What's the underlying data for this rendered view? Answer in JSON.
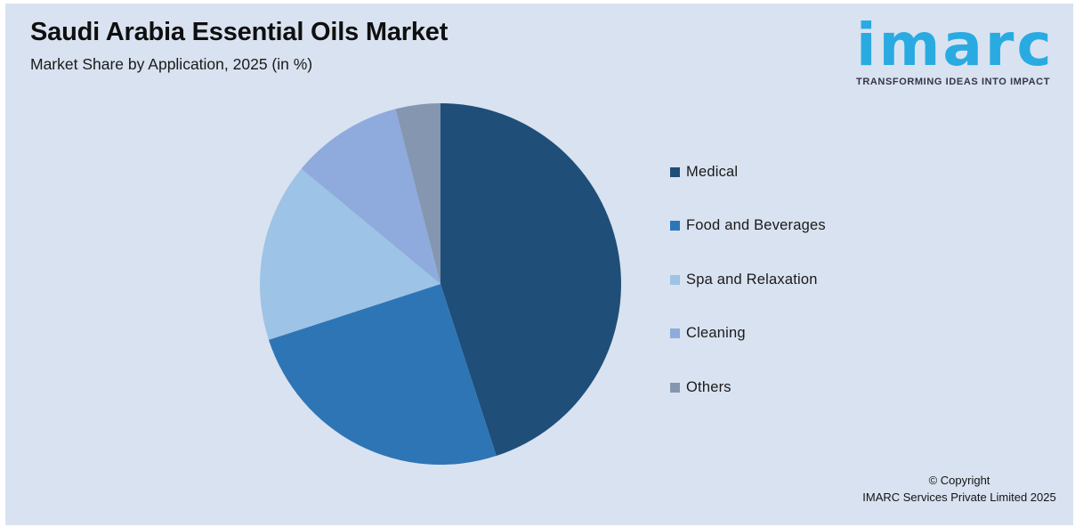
{
  "header": {
    "title": "Saudi Arabia Essential Oils Market",
    "subtitle": "Market Share by Application, 2025 (in %)"
  },
  "logo": {
    "text": "imarc",
    "tagline": "TRANSFORMING IDEAS INTO IMPACT",
    "brand_color": "#29ABE2"
  },
  "chart_data": {
    "type": "pie",
    "title": "Saudi Arabia Essential Oils Market",
    "subtitle": "Market Share by Application, 2025 (in %)",
    "categories": [
      "Medical",
      "Food and Beverages",
      "Spa and Relaxation",
      "Cleaning",
      "Others"
    ],
    "values": [
      45,
      25,
      16,
      10,
      4
    ],
    "unit": "%",
    "colors": [
      "#1F4E79",
      "#2E75B6",
      "#9DC3E6",
      "#8FAADC",
      "#8496B0"
    ],
    "start_angle_deg": 0,
    "direction": "clockwise",
    "legend_position": "right",
    "data_labels": false,
    "background": "#D9E2F0"
  },
  "footer": {
    "copyright_line1": "© Copyright",
    "copyright_line2": "IMARC Services Private Limited 2025"
  }
}
